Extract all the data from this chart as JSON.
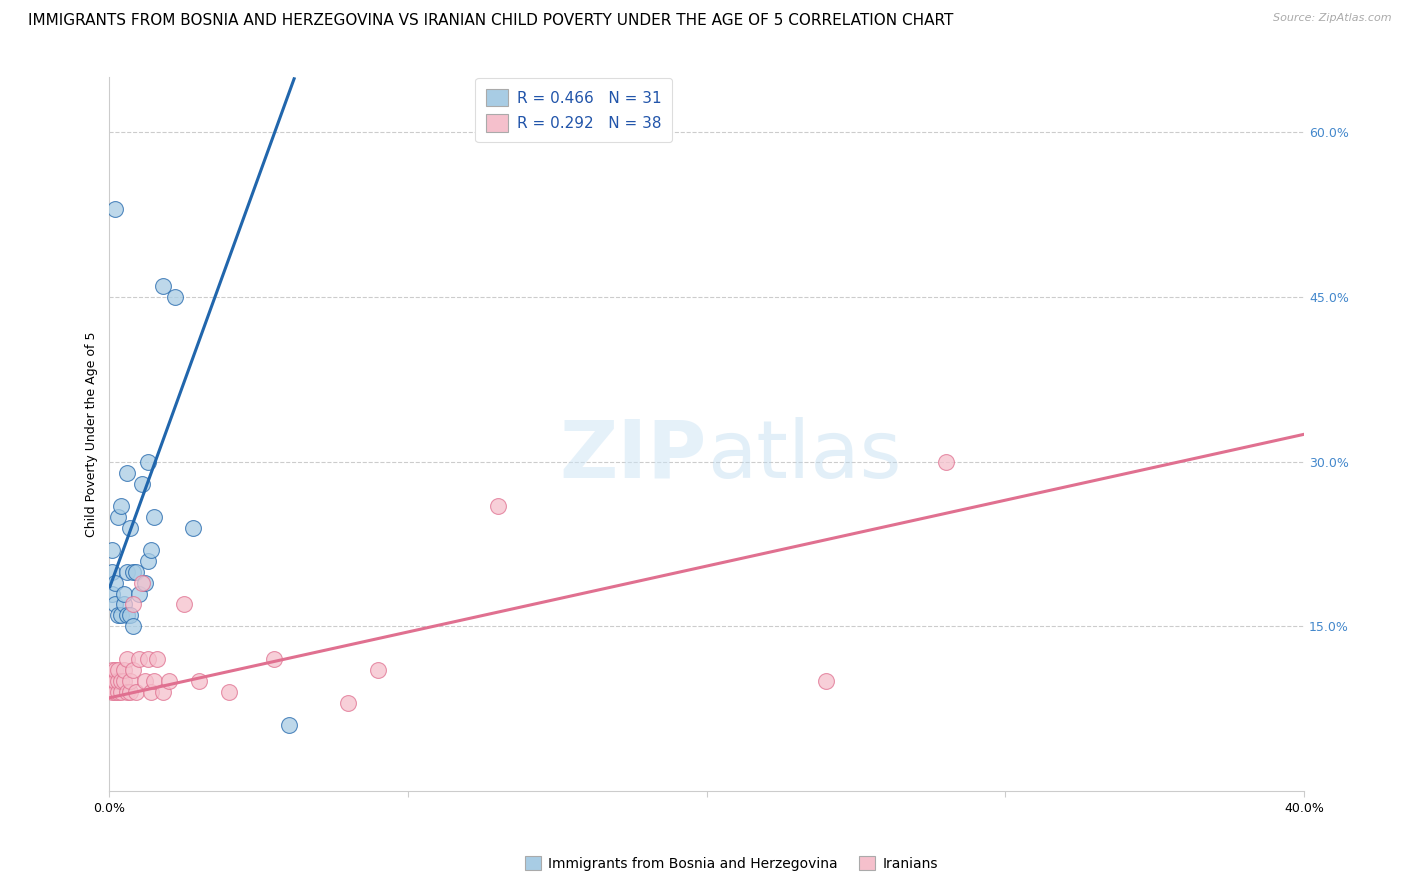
{
  "title": "IMMIGRANTS FROM BOSNIA AND HERZEGOVINA VS IRANIAN CHILD POVERTY UNDER THE AGE OF 5 CORRELATION CHART",
  "source": "Source: ZipAtlas.com",
  "ylabel": "Child Poverty Under the Age of 5",
  "ytick_labels": [
    "15.0%",
    "30.0%",
    "45.0%",
    "60.0%"
  ],
  "ytick_values": [
    0.15,
    0.3,
    0.45,
    0.6
  ],
  "xlim": [
    0.0,
    0.4
  ],
  "ylim": [
    0.0,
    0.65
  ],
  "watermark": "ZIPatlas",
  "legend_blue_label": "Immigrants from Bosnia and Herzegovina",
  "legend_pink_label": "Iranians",
  "R_blue": 0.466,
  "N_blue": 31,
  "R_pink": 0.292,
  "N_pink": 38,
  "blue_color": "#a8cce4",
  "blue_line_color": "#2166ac",
  "pink_color": "#f5c0cc",
  "pink_line_color": "#e07090",
  "blue_points_x": [
    0.001,
    0.001,
    0.001,
    0.002,
    0.002,
    0.002,
    0.003,
    0.003,
    0.004,
    0.004,
    0.005,
    0.005,
    0.006,
    0.006,
    0.006,
    0.007,
    0.007,
    0.008,
    0.008,
    0.009,
    0.01,
    0.011,
    0.012,
    0.013,
    0.013,
    0.014,
    0.015,
    0.018,
    0.022,
    0.028,
    0.06
  ],
  "blue_points_y": [
    0.18,
    0.2,
    0.22,
    0.17,
    0.19,
    0.53,
    0.16,
    0.25,
    0.16,
    0.26,
    0.17,
    0.18,
    0.16,
    0.2,
    0.29,
    0.16,
    0.24,
    0.15,
    0.2,
    0.2,
    0.18,
    0.28,
    0.19,
    0.21,
    0.3,
    0.22,
    0.25,
    0.46,
    0.45,
    0.24,
    0.06
  ],
  "pink_points_x": [
    0.001,
    0.001,
    0.001,
    0.002,
    0.002,
    0.002,
    0.003,
    0.003,
    0.003,
    0.004,
    0.004,
    0.005,
    0.005,
    0.006,
    0.006,
    0.007,
    0.007,
    0.008,
    0.008,
    0.009,
    0.01,
    0.011,
    0.012,
    0.013,
    0.014,
    0.015,
    0.016,
    0.018,
    0.02,
    0.025,
    0.03,
    0.04,
    0.055,
    0.08,
    0.09,
    0.13,
    0.24,
    0.28
  ],
  "pink_points_y": [
    0.09,
    0.1,
    0.11,
    0.09,
    0.1,
    0.11,
    0.09,
    0.1,
    0.11,
    0.09,
    0.1,
    0.1,
    0.11,
    0.09,
    0.12,
    0.09,
    0.1,
    0.11,
    0.17,
    0.09,
    0.12,
    0.19,
    0.1,
    0.12,
    0.09,
    0.1,
    0.12,
    0.09,
    0.1,
    0.17,
    0.1,
    0.09,
    0.12,
    0.08,
    0.11,
    0.26,
    0.1,
    0.3
  ],
  "blue_line_x0": 0.0,
  "blue_line_y0": 0.185,
  "blue_line_slope": 7.5,
  "pink_line_x0": 0.0,
  "pink_line_y0": 0.085,
  "pink_line_slope": 0.6,
  "background_color": "#ffffff",
  "grid_color": "#cccccc",
  "title_fontsize": 11,
  "axis_label_fontsize": 9,
  "tick_fontsize": 9
}
